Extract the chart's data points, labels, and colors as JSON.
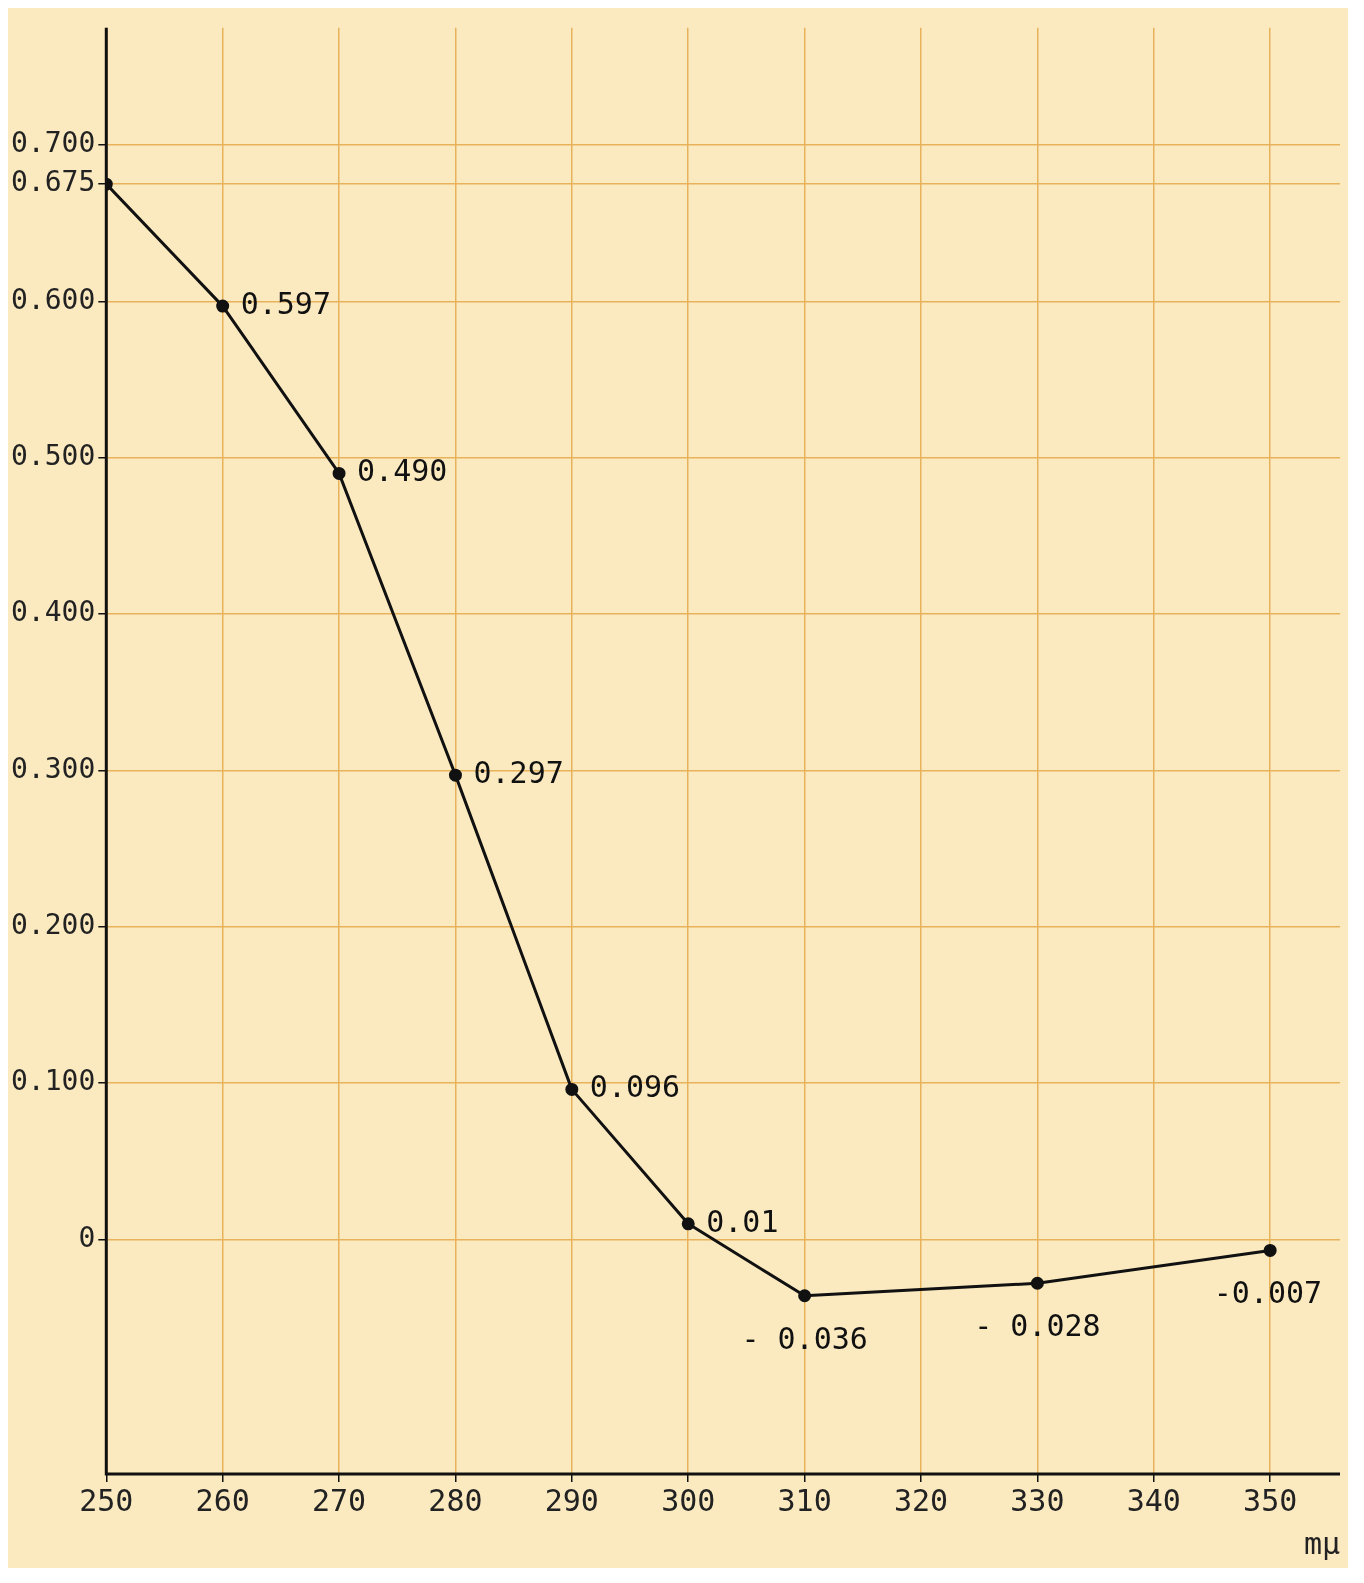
{
  "chart_data": {
    "type": "line",
    "xlabel": "mμ",
    "x": [
      250,
      260,
      270,
      280,
      290,
      300,
      310,
      330,
      350
    ],
    "series": [
      {
        "color": "#111111",
        "values": [
          0.675,
          0.597,
          0.49,
          0.297,
          0.096,
          0.01,
          -0.036,
          -0.028,
          -0.007
        ],
        "value_labels": [
          null,
          "0.597",
          "0.490",
          "0.297",
          "0.096",
          "0.01",
          "- 0.036",
          "- 0.028",
          "-0.007"
        ]
      }
    ],
    "xlim": [
      250,
      356
    ],
    "xticks": [
      250,
      260,
      270,
      280,
      290,
      300,
      310,
      320,
      330,
      340,
      350
    ],
    "ylim": [
      -0.15,
      0.775
    ],
    "yticks": [
      0,
      {
        "value": 0.1,
        "label": "0.100"
      },
      {
        "value": 0.2,
        "label": "0.200"
      },
      {
        "value": 0.3,
        "label": "0.300"
      },
      {
        "value": 0.4,
        "label": "0.400"
      },
      {
        "value": 0.5,
        "label": "0.500"
      },
      {
        "value": 0.6,
        "label": "0.600"
      },
      0.675,
      {
        "value": 0.7,
        "label": "0.700"
      }
    ],
    "grid": true,
    "marker": "circle",
    "line_style": "solid",
    "legend": false
  }
}
